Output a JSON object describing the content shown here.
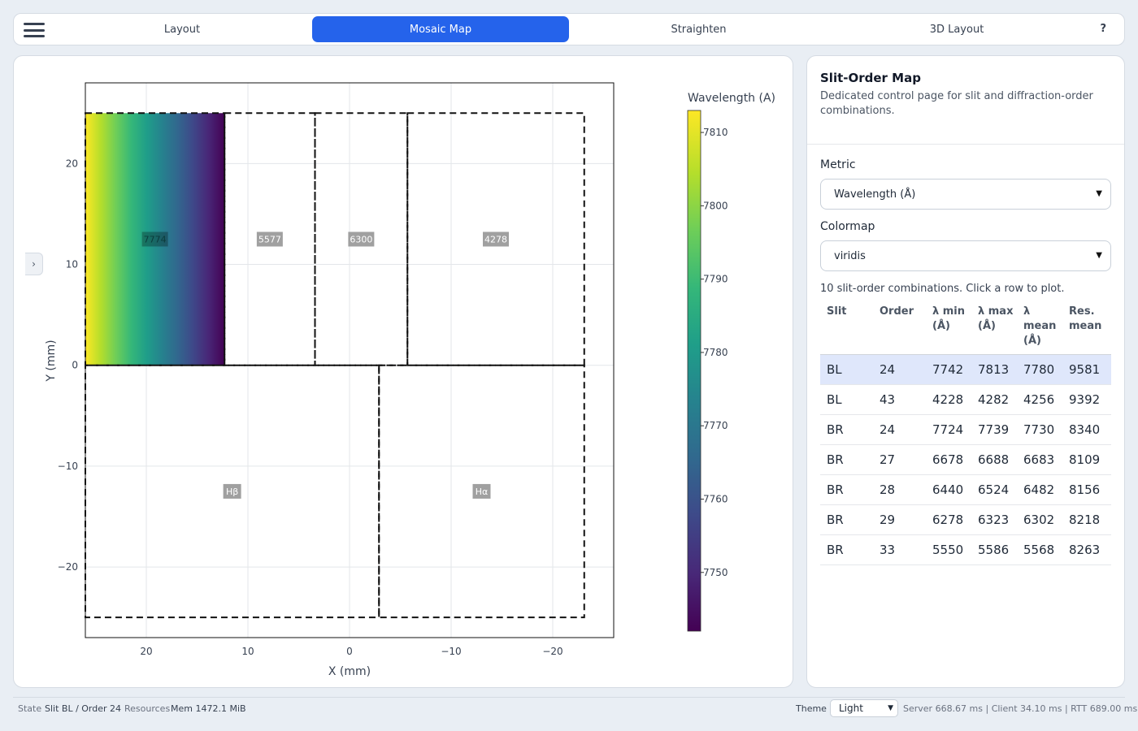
{
  "nav": {
    "tabs": [
      {
        "label": "Layout",
        "active": false
      },
      {
        "label": "Mosaic Map",
        "active": true
      },
      {
        "label": "Straighten",
        "active": false
      },
      {
        "label": "3D Layout",
        "active": false
      }
    ],
    "help_label": "?"
  },
  "panel_toggle_label": "›",
  "sidebar": {
    "title": "Slit-Order Map",
    "description": "Dedicated control page for slit and diffraction-order combinations.",
    "metric_label": "Metric",
    "metric_value": "Wavelength (Å)",
    "colormap_label": "Colormap",
    "colormap_value": "viridis",
    "count_text": "10 slit-order combinations. Click a row to plot.",
    "columns": [
      "Slit",
      "Order",
      "λ min (Å)",
      "λ max (Å)",
      "λ mean (Å)",
      "Res. mean"
    ],
    "rows": [
      {
        "slit": "BL",
        "order": "24",
        "lmin": "7742",
        "lmax": "7813",
        "lmean": "7780",
        "res": "9581",
        "selected": true
      },
      {
        "slit": "BL",
        "order": "43",
        "lmin": "4228",
        "lmax": "4282",
        "lmean": "4256",
        "res": "9392",
        "selected": false
      },
      {
        "slit": "BR",
        "order": "24",
        "lmin": "7724",
        "lmax": "7739",
        "lmean": "7730",
        "res": "8340",
        "selected": false
      },
      {
        "slit": "BR",
        "order": "27",
        "lmin": "6678",
        "lmax": "6688",
        "lmean": "6683",
        "res": "8109",
        "selected": false
      },
      {
        "slit": "BR",
        "order": "28",
        "lmin": "6440",
        "lmax": "6524",
        "lmean": "6482",
        "res": "8156",
        "selected": false
      },
      {
        "slit": "BR",
        "order": "29",
        "lmin": "6278",
        "lmax": "6323",
        "lmean": "6302",
        "res": "8218",
        "selected": false
      },
      {
        "slit": "BR",
        "order": "33",
        "lmin": "5550",
        "lmax": "5586",
        "lmean": "5568",
        "res": "8263",
        "selected": false
      }
    ]
  },
  "status": {
    "state_label": "State",
    "state_value": "Slit BL / Order 24",
    "resources_label": "Resources",
    "mem_value": "Mem 1472.1 MiB",
    "theme_label": "Theme",
    "theme_value": "Light",
    "timing": "Server 668.67 ms | Client 34.10 ms | RTT 689.00 ms"
  },
  "colors": {
    "accent": "#2563eb",
    "viridis": [
      "#440154",
      "#482878",
      "#3e4989",
      "#31688e",
      "#26828e",
      "#1f9e89",
      "#35b779",
      "#6ece58",
      "#b5de2b",
      "#fde725"
    ]
  },
  "chart_data": {
    "type": "heatmap",
    "xlabel": "X (mm)",
    "ylabel": "Y (mm)",
    "xlim": [
      26,
      -26
    ],
    "ylim": [
      -27,
      28
    ],
    "x_ticks": [
      20,
      10,
      0,
      -10,
      -20
    ],
    "x_tick_labels": [
      "20",
      "10",
      "0",
      "−10",
      "−20"
    ],
    "y_ticks": [
      20,
      10,
      0,
      -10,
      -20
    ],
    "y_tick_labels": [
      "20",
      "10",
      "0",
      "−10",
      "−20"
    ],
    "grid": true,
    "regions": [
      {
        "label": "7774",
        "x0": 26,
        "x1": 12.3,
        "y0": 0,
        "y1": 25,
        "filled": true
      },
      {
        "label": "5577",
        "x0": 12.3,
        "x1": 3.4,
        "y0": 0,
        "y1": 25,
        "filled": false
      },
      {
        "label": "6300",
        "x0": 3.4,
        "x1": -5.7,
        "y0": 0,
        "y1": 25,
        "filled": false
      },
      {
        "label": "4278",
        "x0": -5.7,
        "x1": -23.1,
        "y0": 0,
        "y1": 25,
        "filled": false
      },
      {
        "label": "Hβ",
        "x0": 26,
        "x1": -2.9,
        "y0": -25,
        "y1": 0,
        "filled": false
      },
      {
        "label": "Hα",
        "x0": -2.9,
        "x1": -23.1,
        "y0": -25,
        "y1": 0,
        "filled": false
      }
    ],
    "colorbar": {
      "title": "Wavelength (A)",
      "range": [
        7742,
        7813
      ],
      "ticks": [
        7810,
        7800,
        7790,
        7780,
        7770,
        7760,
        7750
      ],
      "tick_labels": [
        "7810",
        "7800",
        "7790",
        "7780",
        "7770",
        "7760",
        "7750"
      ]
    }
  }
}
